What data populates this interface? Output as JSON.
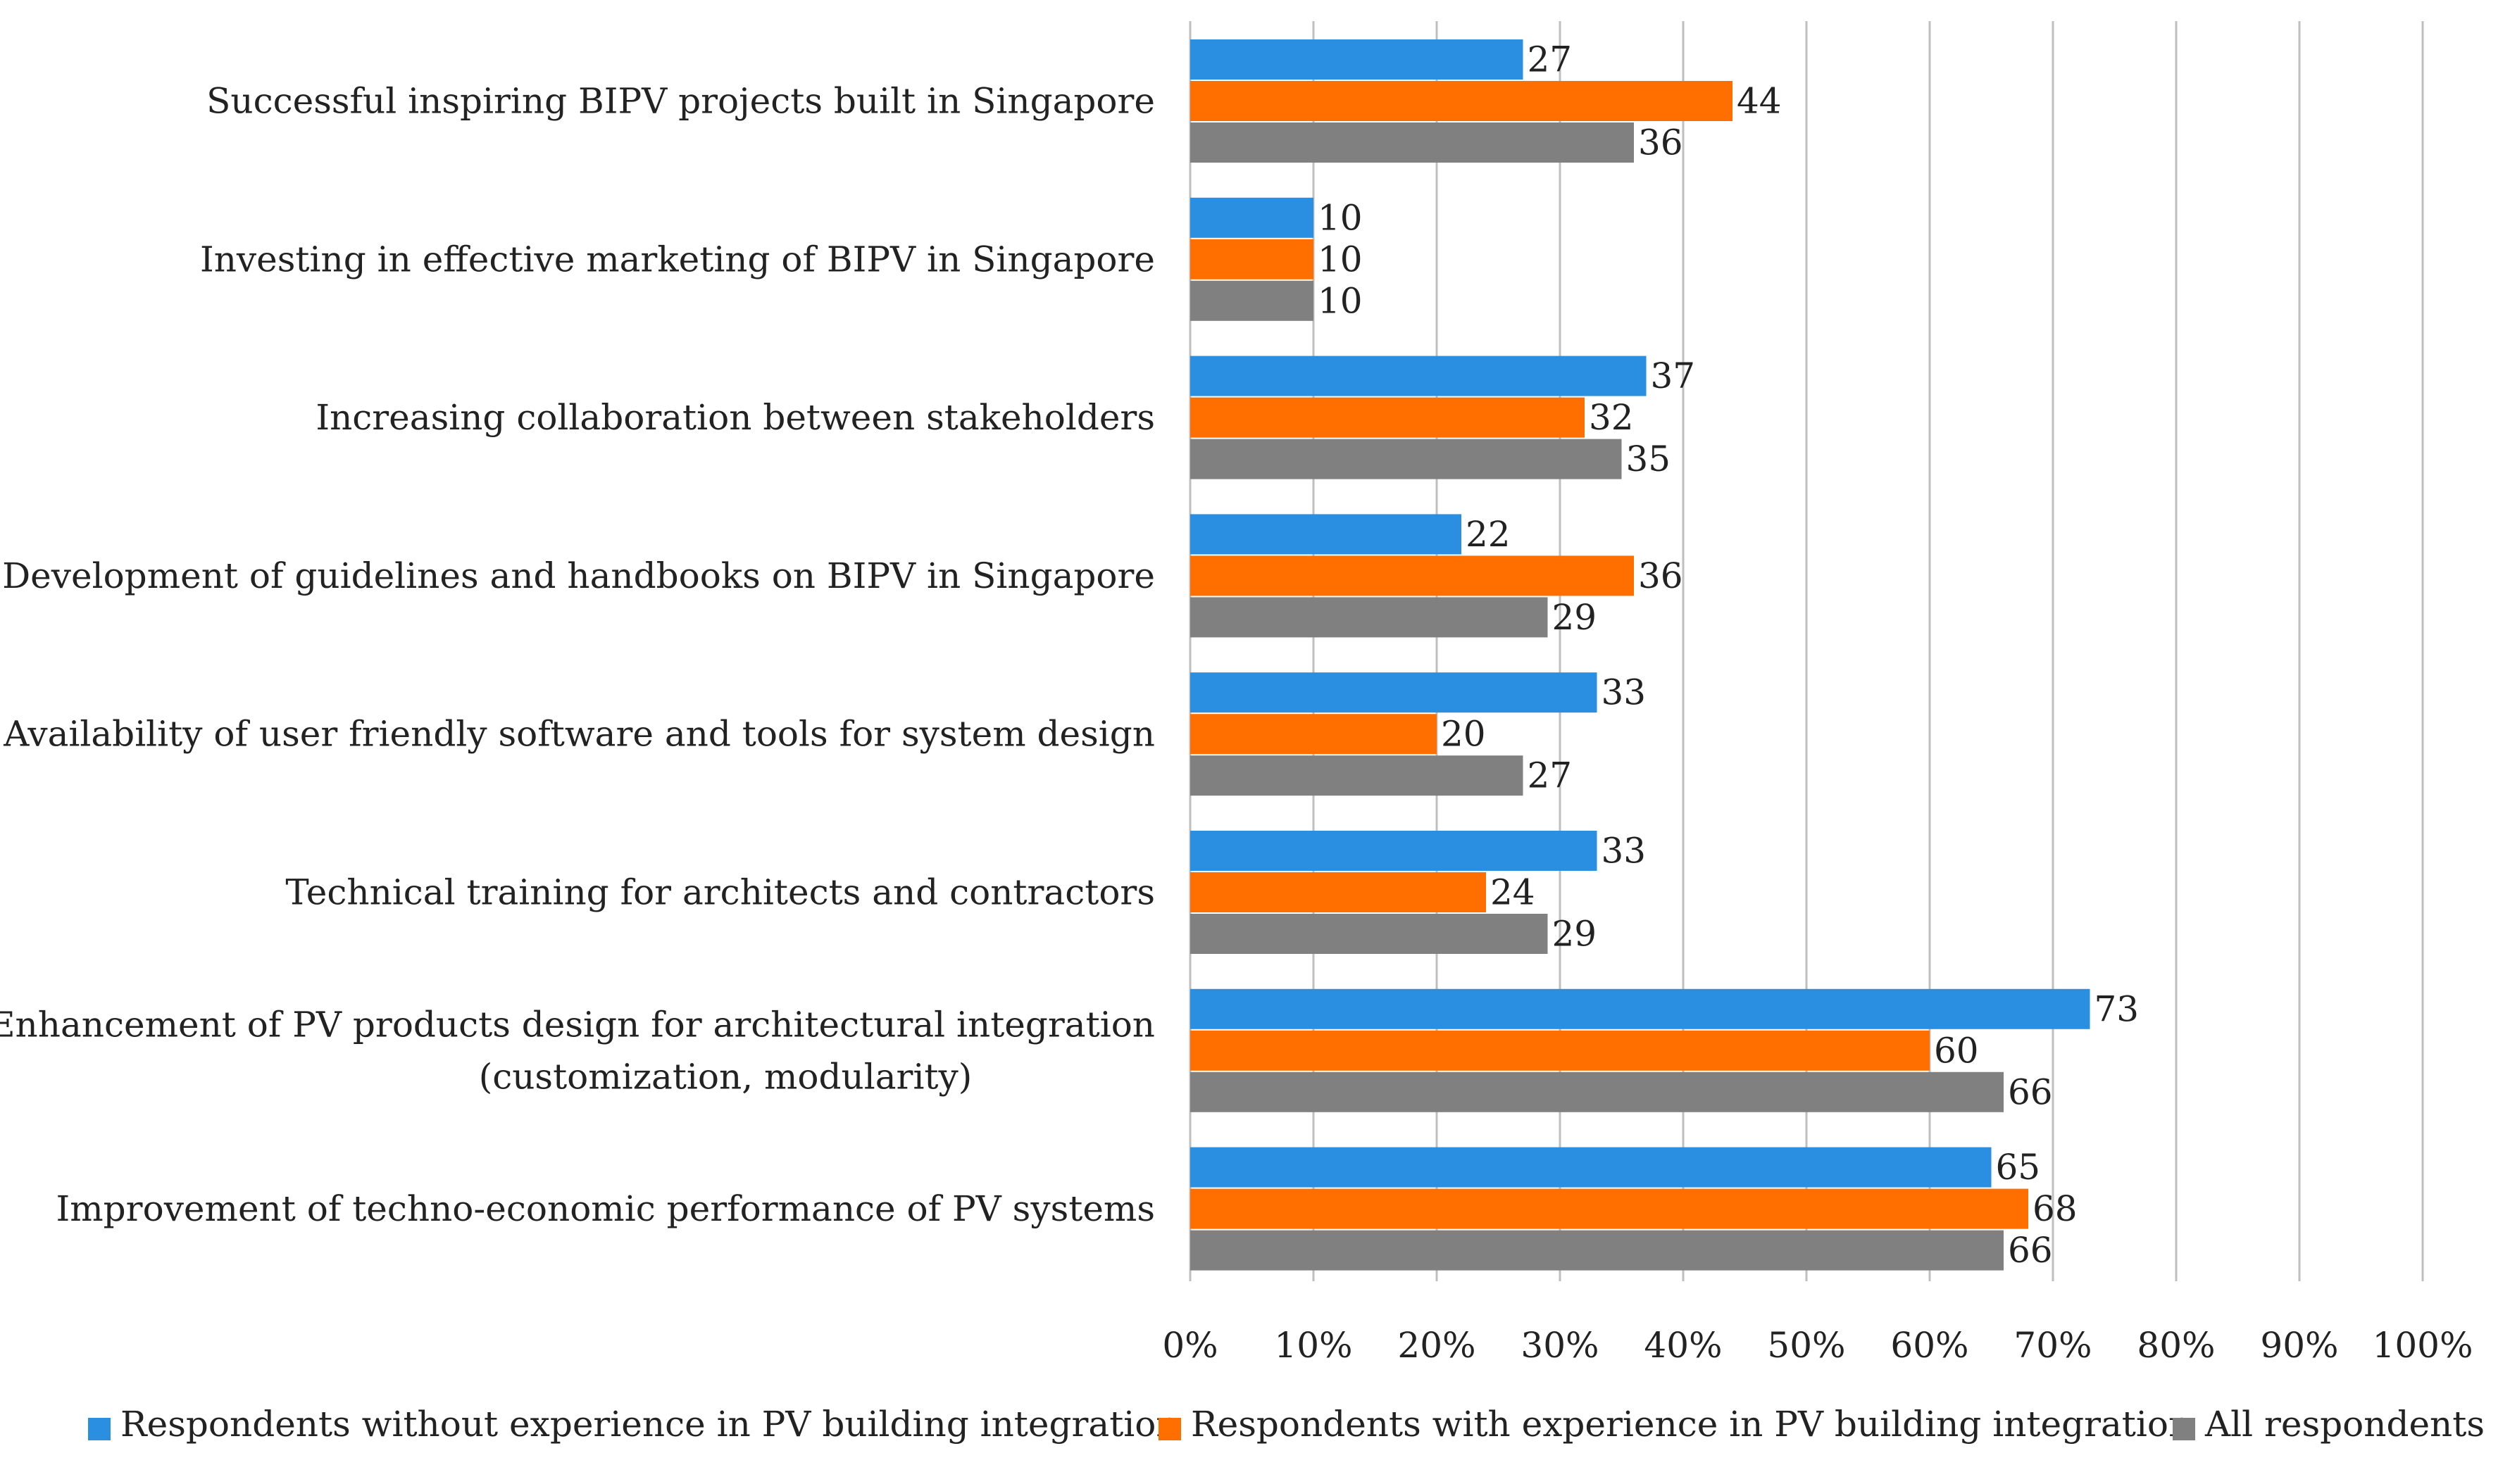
{
  "chart_data": {
    "type": "bar",
    "orientation": "horizontal",
    "title": "",
    "xlabel": "",
    "ylabel": "",
    "xlim": [
      0,
      100
    ],
    "x_ticks": [
      "0%",
      "10%",
      "20%",
      "30%",
      "40%",
      "50%",
      "60%",
      "70%",
      "80%",
      "90%",
      "100%"
    ],
    "grid": true,
    "legend_position": "bottom",
    "categories": [
      [
        "Successful inspiring BIPV projects built in Singapore"
      ],
      [
        "Investing in effective marketing of BIPV in Singapore"
      ],
      [
        "Increasing collaboration between stakeholders"
      ],
      [
        "Development of guidelines and handbooks on BIPV in Singapore"
      ],
      [
        "Availability of user friendly software and tools for system design"
      ],
      [
        "Technical training for architects and contractors"
      ],
      [
        "Enhancement of PV products design for architectural integration",
        "(customization, modularity)"
      ],
      [
        "Improvement of techno-economic performance of PV systems"
      ]
    ],
    "series": [
      {
        "name": "Respondents without experience in PV building integration",
        "color": "#2a8fe0",
        "values": [
          27,
          10,
          37,
          22,
          33,
          33,
          73,
          65
        ]
      },
      {
        "name": "Respondents with experience in PV building integration",
        "color": "#ff6f00",
        "values": [
          44,
          10,
          32,
          36,
          20,
          24,
          60,
          68
        ]
      },
      {
        "name": "All respondents",
        "color": "#808080",
        "values": [
          36,
          10,
          35,
          29,
          27,
          29,
          66,
          66
        ]
      }
    ]
  }
}
